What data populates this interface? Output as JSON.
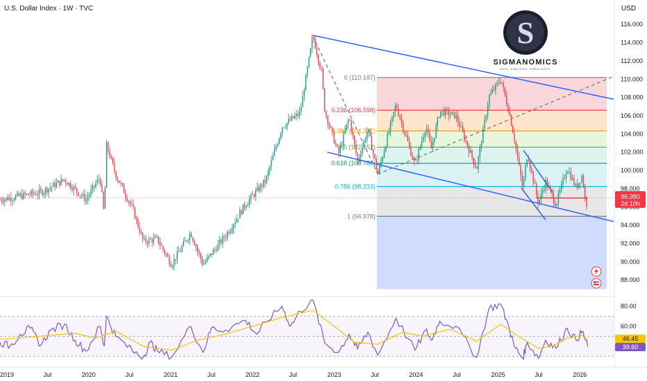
{
  "header": {
    "title": "U.S. Dollar Index · 1W · TVC",
    "currency": "USD"
  },
  "logo": {
    "name": "SIGMANOMICS",
    "tagline": "DATA. ANALYSIS. FORECASTS."
  },
  "price_badge": {
    "price": "96.980",
    "countdown": "2d 10h",
    "color": "#f23645"
  },
  "rsi_badges": {
    "ma": "46.45",
    "rsi": "39.60",
    "ma_color": "#f7c600",
    "rsi_color": "#7e57c2"
  },
  "icons": [
    "lightning-icon",
    "flag-icon"
  ],
  "colors": {
    "up": "#089981",
    "down": "#f23645",
    "trend": "#2962ff",
    "rsi": "#7e57c2",
    "rsi_ma": "#f7c600"
  },
  "chart_data": [
    {
      "type": "candlestick",
      "title": "U.S. Dollar Index · 1W · TVC",
      "y_axis": {
        "unit": "USD",
        "ticks": [
          "116.000",
          "114.000",
          "112.000",
          "110.000",
          "108.000",
          "106.000",
          "104.000",
          "102.000",
          "100.000",
          "98.000",
          "96.000",
          "94.000",
          "92.000",
          "90.000",
          "88.000"
        ],
        "ylim": [
          86.5,
          117.0
        ]
      },
      "x_axis": {
        "ticks": [
          "2019",
          "Jul",
          "2020",
          "Jul",
          "2021",
          "Jul",
          "2022",
          "Jul",
          "2023",
          "Jul",
          "2024",
          "Jul",
          "2025",
          "Jul",
          "2026"
        ],
        "range": [
          "2018-12-01",
          "2026-06-01"
        ]
      },
      "key_prices": [
        {
          "date": "2018-12-01",
          "value": 96.8
        },
        {
          "date": "2019-03-01",
          "value": 97.2
        },
        {
          "date": "2019-06-01",
          "value": 97.6
        },
        {
          "date": "2019-09-15",
          "value": 99.0
        },
        {
          "date": "2019-12-20",
          "value": 96.8
        },
        {
          "date": "2020-02-20",
          "value": 99.3
        },
        {
          "date": "2020-03-10",
          "value": 95.0
        },
        {
          "date": "2020-03-20",
          "value": 102.8
        },
        {
          "date": "2020-05-01",
          "value": 99.5
        },
        {
          "date": "2020-07-15",
          "value": 95.8
        },
        {
          "date": "2020-09-01",
          "value": 92.2
        },
        {
          "date": "2020-11-01",
          "value": 92.5
        },
        {
          "date": "2021-01-05",
          "value": 89.7
        },
        {
          "date": "2021-03-31",
          "value": 93.2
        },
        {
          "date": "2021-05-25",
          "value": 89.7
        },
        {
          "date": "2021-09-01",
          "value": 92.8
        },
        {
          "date": "2021-12-01",
          "value": 96.3
        },
        {
          "date": "2022-03-01",
          "value": 98.9
        },
        {
          "date": "2022-05-13",
          "value": 104.8
        },
        {
          "date": "2022-08-01",
          "value": 106.3
        },
        {
          "date": "2022-09-28",
          "value": 114.7
        },
        {
          "date": "2022-11-05",
          "value": 110.8
        },
        {
          "date": "2022-11-20",
          "value": 106.5
        },
        {
          "date": "2023-01-20",
          "value": 101.8
        },
        {
          "date": "2023-03-08",
          "value": 105.8
        },
        {
          "date": "2023-04-15",
          "value": 101.0
        },
        {
          "date": "2023-05-31",
          "value": 104.5
        },
        {
          "date": "2023-07-14",
          "value": 99.6
        },
        {
          "date": "2023-10-03",
          "value": 107.2
        },
        {
          "date": "2023-12-27",
          "value": 100.6
        },
        {
          "date": "2024-02-14",
          "value": 104.9
        },
        {
          "date": "2024-03-08",
          "value": 102.3
        },
        {
          "date": "2024-04-16",
          "value": 106.5
        },
        {
          "date": "2024-06-26",
          "value": 106.0
        },
        {
          "date": "2024-09-27",
          "value": 100.2
        },
        {
          "date": "2024-11-22",
          "value": 108.1
        },
        {
          "date": "2025-01-13",
          "value": 110.0
        },
        {
          "date": "2025-02-20",
          "value": 106.3
        },
        {
          "date": "2025-03-14",
          "value": 103.6
        },
        {
          "date": "2025-04-21",
          "value": 98.0
        },
        {
          "date": "2025-05-12",
          "value": 101.9
        },
        {
          "date": "2025-06-30",
          "value": 96.4
        },
        {
          "date": "2025-08-01",
          "value": 98.8
        },
        {
          "date": "2025-09-17",
          "value": 96.3
        },
        {
          "date": "2025-11-05",
          "value": 100.3
        },
        {
          "date": "2025-12-15",
          "value": 98.1
        },
        {
          "date": "2026-01-12",
          "value": 99.5
        },
        {
          "date": "2026-01-28",
          "value": 96.0
        },
        {
          "date": "2026-02-05",
          "value": 96.98
        }
      ],
      "last_price": 96.98,
      "fibonacci": {
        "start_date": "2023-07-10",
        "end_date": "2026-05-01",
        "levels": [
          {
            "ratio": "0",
            "label": "0 (110.187)",
            "price": 110.187,
            "color": "#787b86",
            "fill": "#f8cfd3"
          },
          {
            "ratio": "0.236",
            "label": "0.236 (106.598)",
            "price": 106.598,
            "color": "#f23645",
            "fill": "#fde2c4"
          },
          {
            "ratio": "0.382",
            "label": "0.382 (104.327)",
            "price": 104.327,
            "color": "#ff9800",
            "fill": "#e4f4d6"
          },
          {
            "ratio": "0.5",
            "label": "0.5 (102.552)",
            "price": 102.552,
            "color": "#4caf50",
            "fill": "#d6f2ea"
          },
          {
            "ratio": "0.618",
            "label": "0.618 (100.788)",
            "price": 100.788,
            "color": "#089981",
            "fill": "#d3f0f2"
          },
          {
            "ratio": "0.786",
            "label": "0.786 (98.233)",
            "price": 98.233,
            "color": "#00bcd4",
            "fill": "#e3e3e3"
          },
          {
            "ratio": "1",
            "label": "1 (94.978)",
            "price": 94.978,
            "color": "#787b86",
            "fill": "#c7d6fa"
          }
        ],
        "extension_bottom": 87.0
      },
      "trendlines": [
        {
          "kind": "upper-channel",
          "points": [
            {
              "date": "2022-09-28",
              "value": 114.8
            },
            {
              "date": "2026-06-01",
              "value": 107.8
            }
          ],
          "color": "#2962ff"
        },
        {
          "kind": "lower-channel",
          "points": [
            {
              "date": "2022-12-01",
              "value": 102.0
            },
            {
              "date": "2026-06-01",
              "value": 94.4
            }
          ],
          "color": "#2962ff"
        },
        {
          "kind": "dashed-rising",
          "points": [
            {
              "date": "2023-07-14",
              "value": 99.6
            },
            {
              "date": "2026-06-01",
              "value": 110.3
            }
          ],
          "color": "#787b86"
        },
        {
          "kind": "dashed-falling",
          "points": [
            {
              "date": "2022-09-28",
              "value": 114.7
            },
            {
              "date": "2023-07-14",
              "value": 99.6
            }
          ],
          "color": "#787b86"
        },
        {
          "kind": "wedge-top",
          "points": [
            {
              "date": "2025-04-25",
              "value": 102.2
            },
            {
              "date": "2025-09-01",
              "value": 97.6
            }
          ],
          "color": "#2962ff"
        },
        {
          "kind": "wedge-bottom",
          "points": [
            {
              "date": "2025-04-14",
              "value": 98.1
            },
            {
              "date": "2025-08-01",
              "value": 94.6
            }
          ],
          "color": "#2962ff"
        },
        {
          "kind": "support",
          "points": [
            {
              "date": "2025-06-20",
              "value": 97.0
            },
            {
              "date": "2026-02-05",
              "value": 96.98
            }
          ],
          "color": "#f23645"
        }
      ]
    },
    {
      "type": "line",
      "title": "RSI",
      "y_axis": {
        "ticks": [
          "80.00",
          "60.00",
          "40.00"
        ],
        "ylim": [
          26,
          87
        ]
      },
      "bands": [
        70,
        50,
        30
      ],
      "series": [
        {
          "role": "rsi",
          "color": "#7e57c2",
          "points": [
            {
              "date": "2018-12-01",
              "value": 44
            },
            {
              "date": "2019-01-15",
              "value": 40
            },
            {
              "date": "2019-03-01",
              "value": 52
            },
            {
              "date": "2019-04-15",
              "value": 58
            },
            {
              "date": "2019-06-01",
              "value": 41
            },
            {
              "date": "2019-07-15",
              "value": 56
            },
            {
              "date": "2019-09-15",
              "value": 62
            },
            {
              "date": "2019-11-01",
              "value": 46
            },
            {
              "date": "2019-12-20",
              "value": 35
            },
            {
              "date": "2020-02-20",
              "value": 60
            },
            {
              "date": "2020-03-10",
              "value": 40
            },
            {
              "date": "2020-03-20",
              "value": 70
            },
            {
              "date": "2020-05-01",
              "value": 50
            },
            {
              "date": "2020-07-15",
              "value": 35
            },
            {
              "date": "2020-09-01",
              "value": 29
            },
            {
              "date": "2020-10-01",
              "value": 44
            },
            {
              "date": "2020-11-01",
              "value": 36
            },
            {
              "date": "2021-01-05",
              "value": 29
            },
            {
              "date": "2021-03-31",
              "value": 60
            },
            {
              "date": "2021-05-25",
              "value": 34
            },
            {
              "date": "2021-07-01",
              "value": 58
            },
            {
              "date": "2021-09-01",
              "value": 56
            },
            {
              "date": "2021-12-01",
              "value": 66
            },
            {
              "date": "2022-01-20",
              "value": 52
            },
            {
              "date": "2022-03-01",
              "value": 64
            },
            {
              "date": "2022-05-13",
              "value": 80
            },
            {
              "date": "2022-06-20",
              "value": 60
            },
            {
              "date": "2022-08-01",
              "value": 75
            },
            {
              "date": "2022-09-28",
              "value": 86
            },
            {
              "date": "2022-11-20",
              "value": 43
            },
            {
              "date": "2023-01-20",
              "value": 34
            },
            {
              "date": "2023-03-08",
              "value": 52
            },
            {
              "date": "2023-04-15",
              "value": 37
            },
            {
              "date": "2023-05-31",
              "value": 54
            },
            {
              "date": "2023-07-14",
              "value": 31
            },
            {
              "date": "2023-10-03",
              "value": 68
            },
            {
              "date": "2023-12-27",
              "value": 36
            },
            {
              "date": "2024-02-14",
              "value": 56
            },
            {
              "date": "2024-03-08",
              "value": 46
            },
            {
              "date": "2024-04-16",
              "value": 65
            },
            {
              "date": "2024-06-26",
              "value": 60
            },
            {
              "date": "2024-09-27",
              "value": 29
            },
            {
              "date": "2024-11-22",
              "value": 78
            },
            {
              "date": "2025-01-13",
              "value": 82
            },
            {
              "date": "2025-02-20",
              "value": 58
            },
            {
              "date": "2025-03-14",
              "value": 40
            },
            {
              "date": "2025-04-21",
              "value": 28
            },
            {
              "date": "2025-05-12",
              "value": 44
            },
            {
              "date": "2025-06-30",
              "value": 28
            },
            {
              "date": "2025-08-01",
              "value": 46
            },
            {
              "date": "2025-09-17",
              "value": 38
            },
            {
              "date": "2025-11-05",
              "value": 58
            },
            {
              "date": "2025-12-15",
              "value": 46
            },
            {
              "date": "2026-01-12",
              "value": 55
            },
            {
              "date": "2026-02-05",
              "value": 39.6
            }
          ]
        },
        {
          "role": "rsi-ma",
          "color": "#f7c600",
          "points": [
            {
              "date": "2018-12-01",
              "value": 47
            },
            {
              "date": "2019-06-01",
              "value": 50
            },
            {
              "date": "2019-11-01",
              "value": 53
            },
            {
              "date": "2020-02-01",
              "value": 48
            },
            {
              "date": "2020-05-01",
              "value": 55
            },
            {
              "date": "2020-09-01",
              "value": 40
            },
            {
              "date": "2021-01-05",
              "value": 36
            },
            {
              "date": "2021-05-01",
              "value": 46
            },
            {
              "date": "2021-09-01",
              "value": 52
            },
            {
              "date": "2022-01-01",
              "value": 60
            },
            {
              "date": "2022-05-01",
              "value": 68
            },
            {
              "date": "2022-09-28",
              "value": 76
            },
            {
              "date": "2023-01-01",
              "value": 60
            },
            {
              "date": "2023-04-01",
              "value": 44
            },
            {
              "date": "2023-07-14",
              "value": 42
            },
            {
              "date": "2023-11-01",
              "value": 54
            },
            {
              "date": "2024-02-01",
              "value": 50
            },
            {
              "date": "2024-06-01",
              "value": 57
            },
            {
              "date": "2024-09-27",
              "value": 45
            },
            {
              "date": "2025-01-13",
              "value": 62
            },
            {
              "date": "2025-04-01",
              "value": 50
            },
            {
              "date": "2025-06-30",
              "value": 38
            },
            {
              "date": "2025-09-01",
              "value": 40
            },
            {
              "date": "2025-11-05",
              "value": 48
            },
            {
              "date": "2026-01-12",
              "value": 51
            },
            {
              "date": "2026-02-05",
              "value": 46.45
            }
          ]
        }
      ]
    }
  ]
}
